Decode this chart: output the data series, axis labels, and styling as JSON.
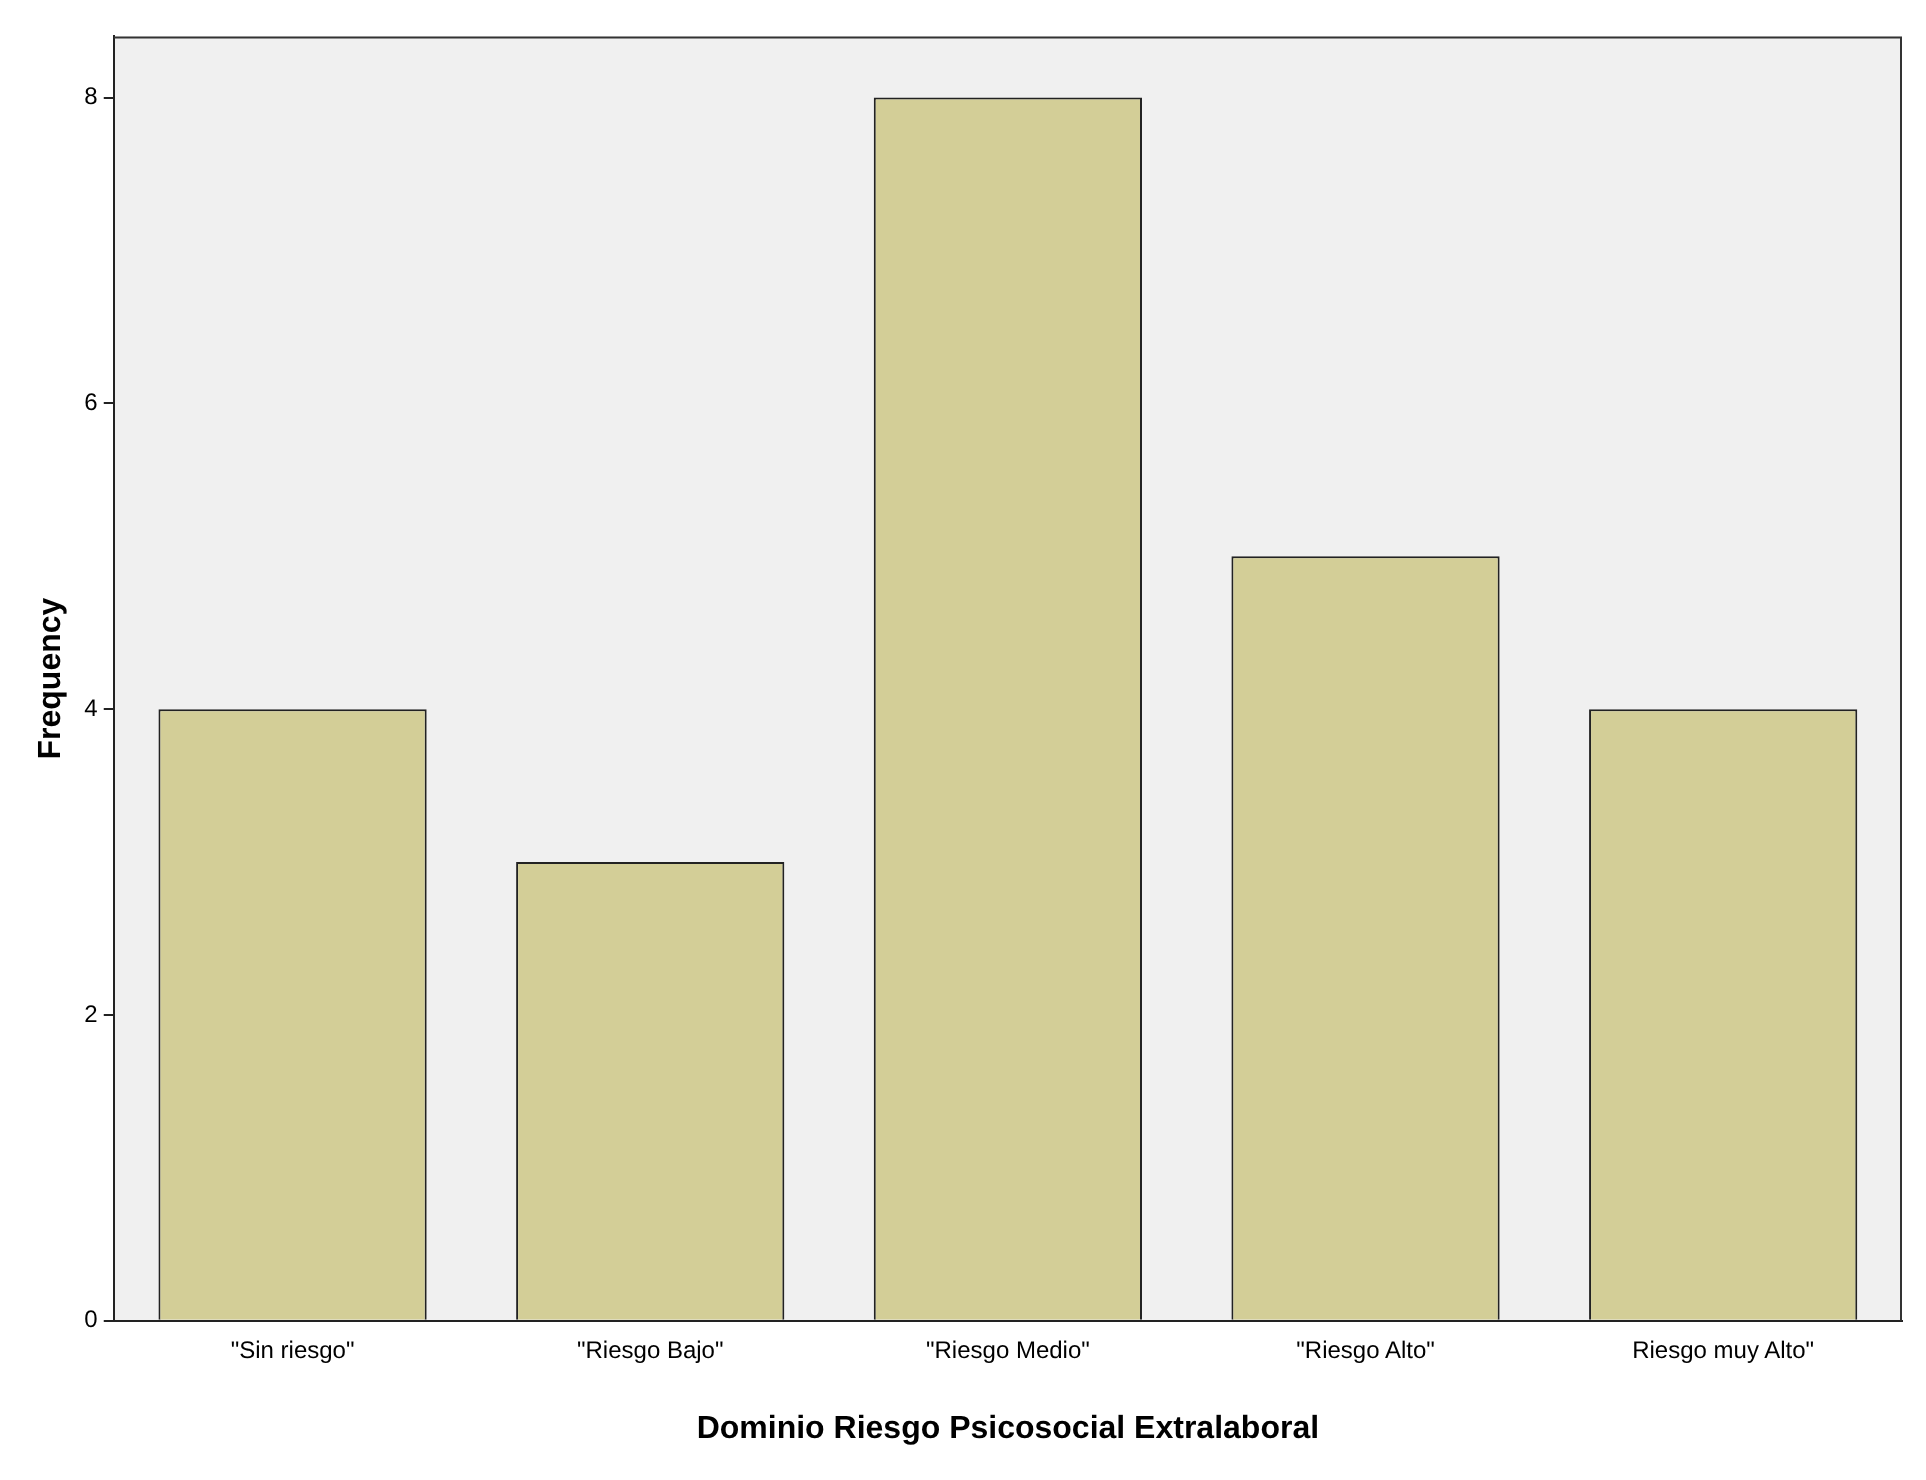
{
  "chart_data": {
    "type": "bar",
    "xlabel": "Dominio Riesgo Psicosocial Extralaboral",
    "ylabel": "Frequency",
    "categories": [
      "\"Sin riesgo\"",
      "\"Riesgo Bajo\"",
      "\"Riesgo Medio\"",
      "\"Riesgo Alto\"",
      "Riesgo muy Alto\""
    ],
    "values": [
      4,
      3,
      8,
      5,
      4
    ],
    "color": "#d3ce97",
    "ylim": [
      0,
      8.4
    ],
    "yticks": [
      0,
      2,
      4,
      6,
      8
    ],
    "grid": false,
    "legend": false
  }
}
